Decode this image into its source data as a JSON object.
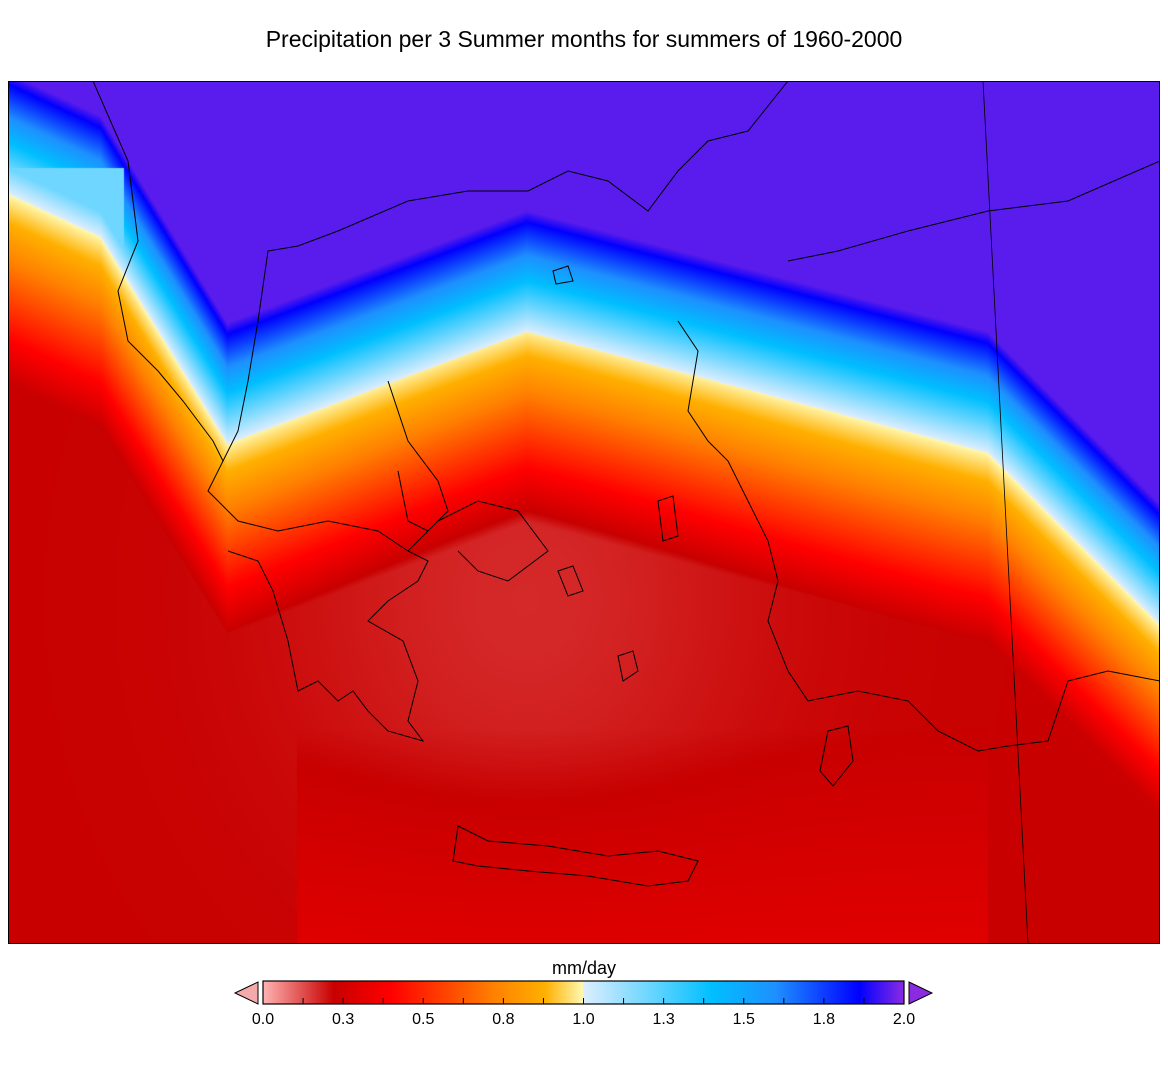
{
  "title": "Precipitation per 3 Summer months for summers of 1960-2000",
  "map": {
    "variable": "precipitation",
    "units": "mm/day",
    "region": "Greece / Aegean Sea",
    "coastlines": true
  },
  "colorbar": {
    "label": "mm/day",
    "range": [
      0.0,
      2.0
    ],
    "extend": "both",
    "under_color": "#f4aaaa",
    "over_color": "#8a2be2",
    "tick_labels": [
      "0.0",
      "0.3",
      "0.5",
      "0.8",
      "1.0",
      "1.3",
      "1.5",
      "1.8",
      "2.0"
    ],
    "colors": [
      "#ffb3b3",
      "#c80000",
      "#ff0000",
      "#ff8000",
      "#ffb000",
      "#fff8b0",
      "#ddeeff",
      "#00bfff",
      "#1e90ff",
      "#0000ff",
      "#8a2be2"
    ]
  }
}
